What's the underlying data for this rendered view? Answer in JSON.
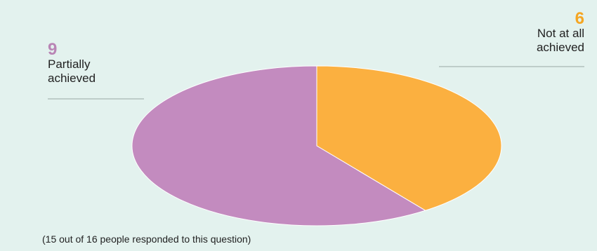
{
  "chart_data": {
    "type": "pie",
    "title": "",
    "slices": [
      {
        "label": "Not at all achieved",
        "label_lines": [
          "Not at all",
          "achieved"
        ],
        "value": 6,
        "color": "#fbb040"
      },
      {
        "label": "Partially achieved",
        "label_lines": [
          "Partially",
          "achieved"
        ],
        "value": 9,
        "color": "#c38bbf"
      }
    ],
    "start_angle_deg": 0,
    "direction": "clockwise",
    "legend": "none"
  },
  "footnote": "(15 out of 16 people responded to this question)"
}
